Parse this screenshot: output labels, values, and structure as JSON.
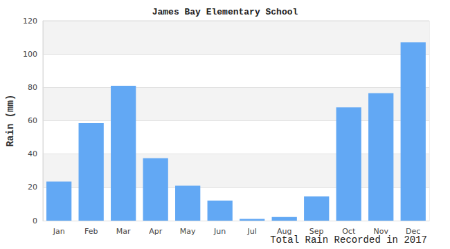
{
  "chart_data": {
    "type": "bar",
    "title": "James Bay Elementary School",
    "ylabel": "Rain (mm)",
    "xlabel": "Total Rain Recorded in 2017",
    "categories": [
      "Jan",
      "Feb",
      "Mar",
      "Apr",
      "May",
      "Jun",
      "Jul",
      "Aug",
      "Sep",
      "Oct",
      "Nov",
      "Dec"
    ],
    "values": [
      23.5,
      58.5,
      81,
      37.5,
      21,
      12,
      1,
      2.2,
      14.5,
      68,
      76.5,
      107
    ],
    "color": "#62a8f4",
    "ylim": [
      0,
      120
    ],
    "yticks": [
      0,
      20,
      40,
      60,
      80,
      100,
      120
    ],
    "grid": true
  }
}
